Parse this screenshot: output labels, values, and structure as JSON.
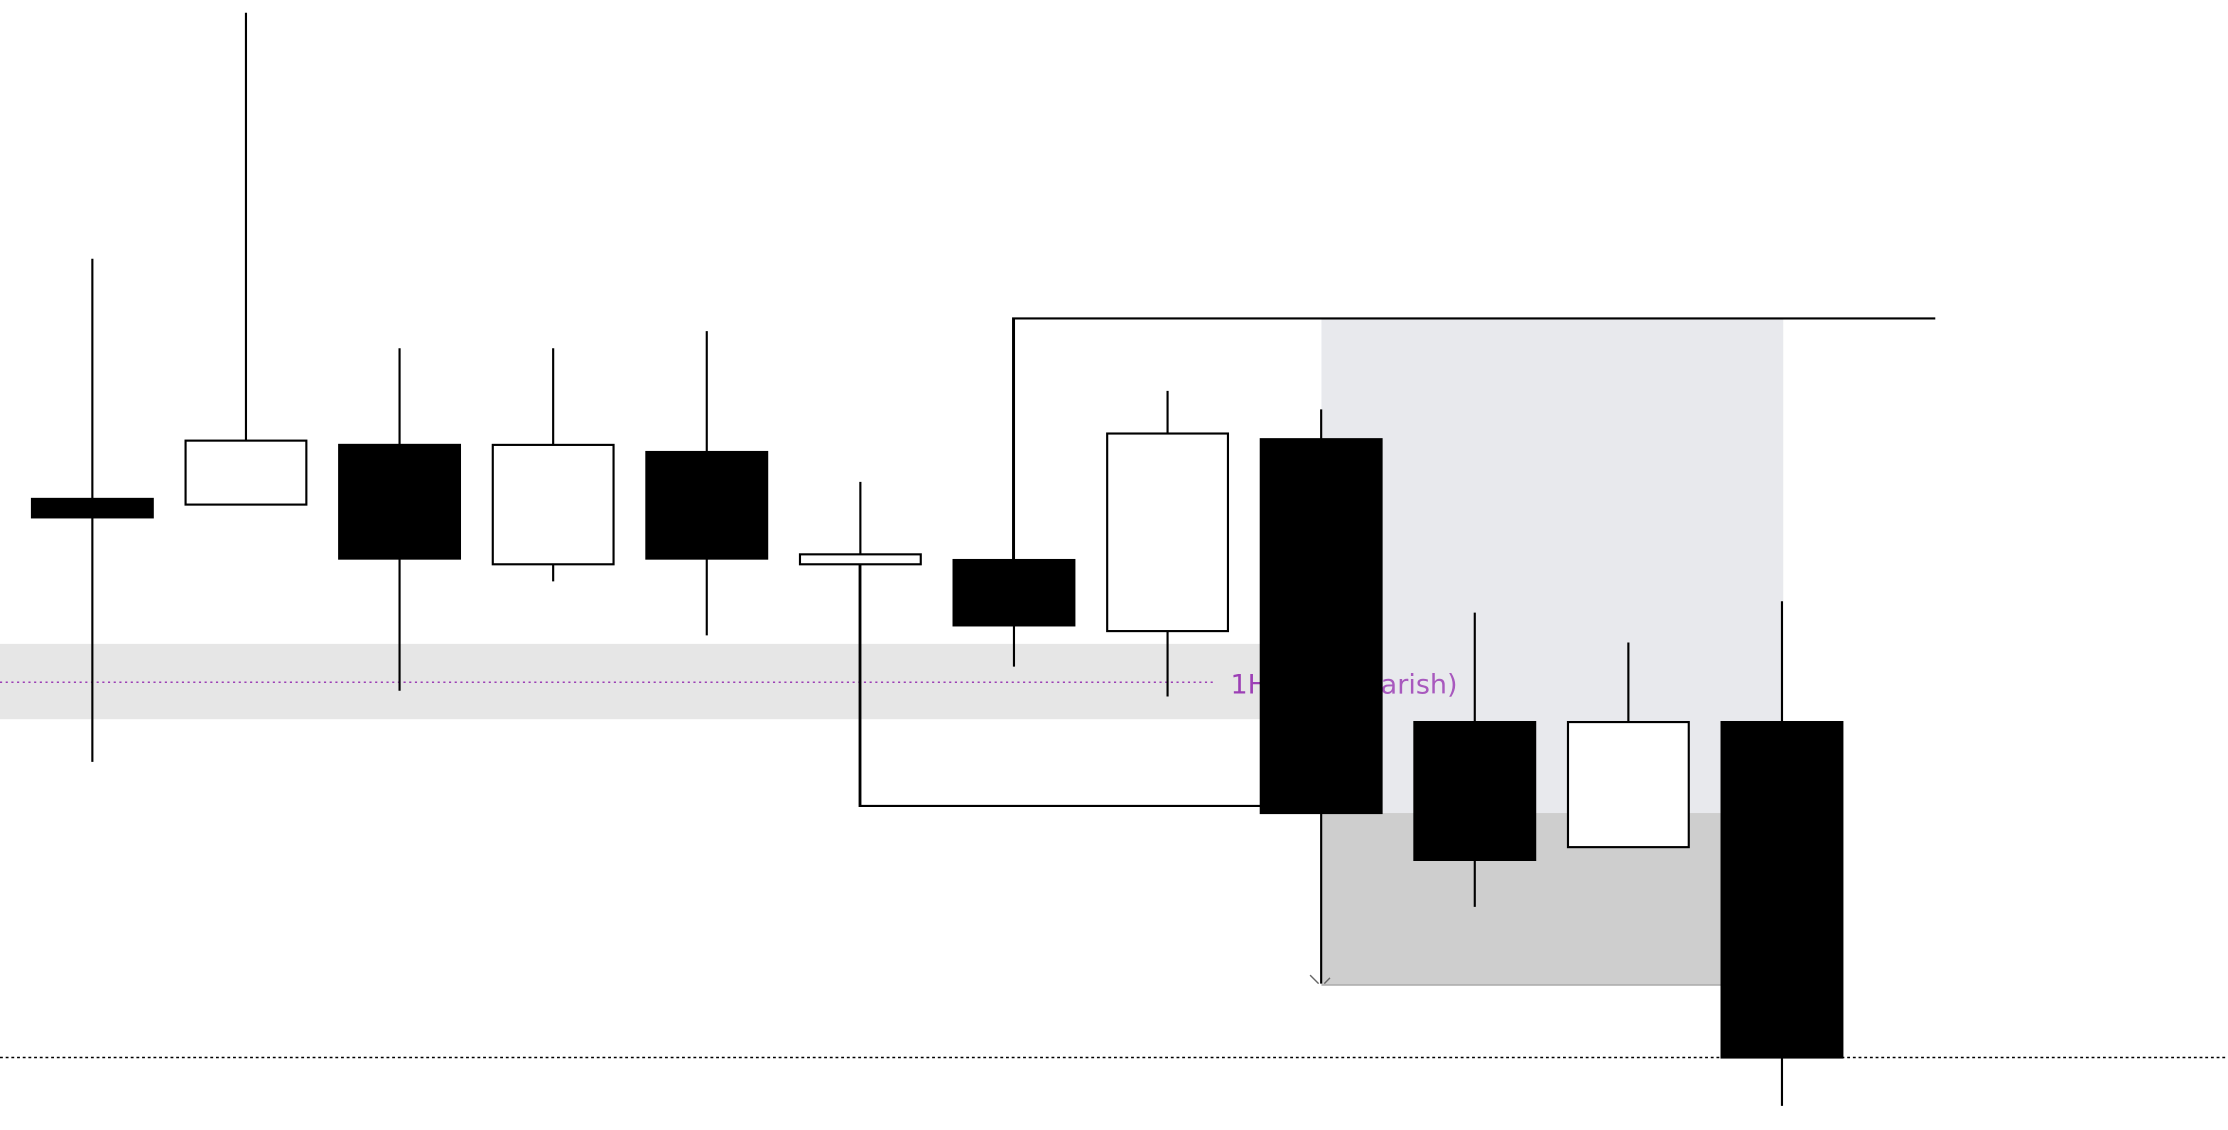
{
  "chart_data": {
    "type": "candlestick",
    "title": "",
    "price_units": "relative",
    "candles": [
      {
        "open": 449,
        "high": 618,
        "low": 264,
        "close": 436
      },
      {
        "open": 445,
        "high": 791,
        "low": 445,
        "close": 490
      },
      {
        "open": 487,
        "high": 555,
        "low": 314,
        "close": 407
      },
      {
        "open": 403,
        "high": 555,
        "low": 391,
        "close": 487
      },
      {
        "open": 482,
        "high": 567,
        "low": 353,
        "close": 407
      },
      {
        "open": 403,
        "high": 461,
        "low": 233,
        "close": 410
      },
      {
        "open": 406,
        "high": 576,
        "low": 331,
        "close": 360
      },
      {
        "open": 356,
        "high": 525,
        "low": 310,
        "close": 495
      },
      {
        "open": 491,
        "high": 512,
        "low": 108,
        "close": 228
      },
      {
        "open": 292,
        "high": 369,
        "low": 162,
        "close": 195
      },
      {
        "open": 204,
        "high": 348,
        "low": 204,
        "close": 292
      },
      {
        "open": 292,
        "high": 377,
        "low": 22,
        "close": 56
      }
    ],
    "zones": [
      {
        "label_visible_start": "1H",
        "label_visible_end": "earish)",
        "top": 347,
        "bottom": 294,
        "level": 320,
        "color": "#e6e6e6",
        "line_color": "#9c3fb5"
      },
      {
        "top": 576,
        "bottom": 228,
        "color": "#e8e9ed"
      },
      {
        "top": 228,
        "bottom": 107,
        "color": "#cecece"
      }
    ],
    "levels": [
      {
        "price": 576,
        "from_candle": 6,
        "to_candle": 12,
        "style": "solid"
      },
      {
        "price": 233,
        "from_candle": 5,
        "to_candle": 8,
        "style": "solid"
      },
      {
        "price": 56,
        "style": "dotted"
      }
    ]
  }
}
